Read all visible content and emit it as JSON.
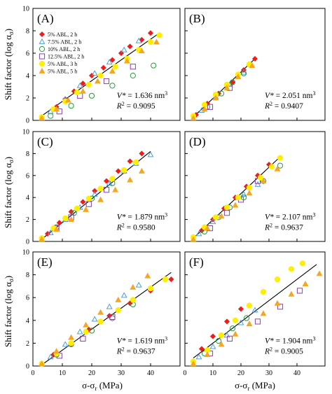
{
  "figure": {
    "ylabel": "Shift factor (log α",
    "ylabel_sub": "σ",
    "ylabel_close": ")",
    "xlabel": "σ-σ",
    "xlabel_sub": "r",
    "xlabel_unit": " (MPa)"
  },
  "legend": [
    {
      "label": "5% ABL, 2 h",
      "marker": "diamond",
      "color": "#ee1c1c"
    },
    {
      "label": "7.5% ABL, 2 h",
      "marker": "triangle-open",
      "color": "#4f9fd6"
    },
    {
      "label": "10% ABL, 2 h",
      "marker": "circle-open",
      "color": "#1f9e3a"
    },
    {
      "label": "12.5% ABL, 2 h",
      "marker": "square-open",
      "color": "#8b3fb0"
    },
    {
      "label": "5% ABL, 3 h",
      "marker": "circle",
      "color": "#ffee00"
    },
    {
      "label": "5% ABL, 5 h",
      "marker": "triangle",
      "color": "#f5a623"
    }
  ],
  "chart_data": [
    {
      "type": "scatter",
      "panel": "(A)",
      "xlim": [
        0,
        50
      ],
      "ylim": [
        0,
        10
      ],
      "xticks": [],
      "yticks": [
        0,
        2,
        4,
        6,
        8,
        10
      ],
      "v_star": "1.636",
      "v_unit": "nm",
      "r2": "0.9095",
      "fit": {
        "x": [
          3,
          43
        ],
        "y": [
          0.4,
          7.8
        ]
      },
      "series": [
        {
          "name": "5% ABL, 2 h",
          "x": [
            8,
            11,
            14,
            17,
            20,
            24,
            27,
            30,
            33,
            37,
            40
          ],
          "y": [
            1.2,
            1.9,
            2.6,
            3.3,
            4.0,
            4.7,
            5.4,
            6.0,
            6.6,
            7.2,
            7.8
          ]
        },
        {
          "name": "7.5% ABL, 2 h",
          "x": [
            6,
            11,
            16,
            21,
            26,
            31,
            36
          ],
          "y": [
            0.8,
            1.9,
            3.1,
            4.2,
            5.2,
            6.3,
            7.1
          ]
        },
        {
          "name": "10% ABL, 2 h",
          "x": [
            6,
            13,
            20,
            27,
            34,
            41
          ],
          "y": [
            0.4,
            1.3,
            2.2,
            3.1,
            4.0,
            4.9
          ]
        },
        {
          "name": "12.5% ABL, 2 h",
          "x": [
            9,
            16,
            25,
            34
          ],
          "y": [
            0.8,
            2.2,
            3.5,
            4.8
          ]
        },
        {
          "name": "5% ABL, 3 h",
          "x": [
            3,
            7,
            11,
            15,
            19,
            23,
            28,
            32,
            36,
            40,
            43
          ],
          "y": [
            0.3,
            1.0,
            1.7,
            2.5,
            3.2,
            4.0,
            4.8,
            5.5,
            6.3,
            7.0,
            7.6
          ]
        },
        {
          "name": "5% ABL, 5 h",
          "x": [
            3,
            8,
            12,
            17,
            22,
            27,
            32,
            37,
            42
          ],
          "y": [
            0.2,
            1.0,
            1.8,
            2.6,
            3.5,
            4.4,
            5.3,
            6.2,
            7.0
          ]
        }
      ]
    },
    {
      "type": "scatter",
      "panel": "(B)",
      "xlim": [
        0,
        50
      ],
      "ylim": [
        0,
        10
      ],
      "xticks": [],
      "yticks": [],
      "v_star": "2.051",
      "v_unit": "nm",
      "r2": "0.9407",
      "fit": {
        "x": [
          3,
          25
        ],
        "y": [
          0.3,
          5.5
        ]
      },
      "series": [
        {
          "name": "5% ABL, 2 h",
          "x": [
            4,
            8,
            12,
            17,
            21,
            25
          ],
          "y": [
            0.5,
            1.5,
            2.4,
            3.4,
            4.5,
            5.5
          ]
        },
        {
          "name": "7.5% ABL, 2 h",
          "x": [
            6,
            11,
            16,
            21
          ],
          "y": [
            0.9,
            2.1,
            3.2,
            4.3
          ]
        },
        {
          "name": "10% ABL, 2 h",
          "x": [
            8,
            13,
            17,
            21
          ],
          "y": [
            1.2,
            2.4,
            3.4,
            4.2
          ]
        },
        {
          "name": "12.5% ABL, 2 h",
          "x": [
            9,
            16
          ],
          "y": [
            1.2,
            2.9
          ]
        },
        {
          "name": "5% ABL, 3 h",
          "x": [
            3,
            7,
            11,
            15,
            19,
            23
          ],
          "y": [
            0.4,
            1.4,
            2.3,
            3.2,
            4.1,
            5.0
          ]
        },
        {
          "name": "5% ABL, 5 h",
          "x": [
            3,
            7,
            11,
            15,
            19,
            24
          ],
          "y": [
            0.2,
            1.0,
            2.0,
            2.9,
            3.9,
            4.9
          ]
        }
      ]
    },
    {
      "type": "scatter",
      "panel": "(C)",
      "xlim": [
        0,
        50
      ],
      "ylim": [
        0,
        10
      ],
      "xticks": [],
      "yticks": [
        0,
        2,
        4,
        6,
        8,
        10
      ],
      "v_star": "1.879",
      "v_unit": "nm",
      "r2": "0.9580",
      "fit": {
        "x": [
          3,
          40
        ],
        "y": [
          0.2,
          8.2
        ]
      },
      "series": [
        {
          "name": "5% ABL, 2 h",
          "x": [
            5,
            9,
            13,
            17,
            21,
            25,
            29,
            33,
            37
          ],
          "y": [
            0.7,
            1.7,
            2.7,
            3.6,
            4.6,
            5.5,
            6.4,
            7.3,
            8.0
          ]
        },
        {
          "name": "7.5% ABL, 2 h",
          "x": [
            6,
            11,
            16,
            21,
            26,
            31,
            35,
            40
          ],
          "y": [
            0.8,
            2.0,
            3.1,
            4.3,
            5.3,
            6.4,
            7.1,
            7.9
          ]
        },
        {
          "name": "10% ABL, 2 h",
          "x": [
            8,
            14,
            20,
            27
          ],
          "y": [
            1.3,
            2.6,
            3.9,
            5.3
          ]
        },
        {
          "name": "12.5% ABL, 2 h",
          "x": [
            8,
            13,
            19,
            25
          ],
          "y": [
            1.2,
            2.2,
            3.4,
            4.7
          ]
        },
        {
          "name": "5% ABL, 3 h",
          "x": [
            3,
            7,
            11,
            15,
            19,
            23,
            27,
            31,
            35
          ],
          "y": [
            0.3,
            1.2,
            2.1,
            3.0,
            3.9,
            4.8,
            5.7,
            6.5,
            7.2
          ]
        },
        {
          "name": "5% ABL, 5 h",
          "x": [
            3,
            8,
            13,
            18,
            23,
            28,
            33,
            37
          ],
          "y": [
            0.2,
            1.1,
            2.0,
            2.9,
            3.8,
            4.7,
            5.6,
            6.4
          ]
        }
      ]
    },
    {
      "type": "scatter",
      "panel": "(D)",
      "xlim": [
        0,
        50
      ],
      "ylim": [
        0,
        10
      ],
      "xticks": [],
      "yticks": [],
      "v_star": "2.107",
      "v_unit": "nm",
      "r2": "0.9637",
      "fit": {
        "x": [
          3,
          34
        ],
        "y": [
          0.3,
          7.7
        ]
      },
      "series": [
        {
          "name": "5% ABL, 2 h",
          "x": [
            6,
            10,
            14,
            18,
            22,
            26,
            30
          ],
          "y": [
            1.0,
            2.0,
            3.0,
            4.0,
            5.0,
            6.0,
            7.0
          ]
        },
        {
          "name": "7.5% ABL, 2 h",
          "x": [
            5,
            10,
            15,
            21,
            26
          ],
          "y": [
            0.7,
            1.8,
            3.0,
            4.3,
            5.2
          ]
        },
        {
          "name": "10% ABL, 2 h",
          "x": [
            7,
            12,
            16,
            21,
            28,
            34
          ],
          "y": [
            0.9,
            2.2,
            3.1,
            4.0,
            5.5,
            6.9
          ]
        },
        {
          "name": "12.5% ABL, 2 h",
          "x": [
            9,
            15,
            20,
            26
          ],
          "y": [
            1.2,
            2.6,
            3.8,
            5.5
          ]
        },
        {
          "name": "5% ABL, 3 h",
          "x": [
            3,
            7,
            11,
            15,
            19,
            23,
            27,
            31,
            34
          ],
          "y": [
            0.4,
            1.3,
            2.2,
            3.1,
            4.0,
            4.9,
            5.8,
            6.8,
            7.6
          ]
        },
        {
          "name": "5% ABL, 5 h",
          "x": [
            3,
            8,
            13,
            18,
            23,
            28,
            33
          ],
          "y": [
            0.2,
            1.2,
            2.3,
            3.3,
            4.4,
            5.5,
            6.6
          ]
        }
      ]
    },
    {
      "type": "scatter",
      "panel": "(E)",
      "xlim": [
        0,
        50
      ],
      "ylim": [
        0,
        10
      ],
      "xticks": [
        0,
        10,
        20,
        30,
        40
      ],
      "yticks": [
        0,
        2,
        4,
        6,
        8,
        10
      ],
      "v_star": "1.619",
      "v_unit": "nm",
      "r2": "0.9637",
      "fit": {
        "x": [
          3,
          47
        ],
        "y": [
          0.1,
          8.2
        ]
      },
      "series": [
        {
          "name": "5% ABL, 2 h",
          "x": [
            7,
            13,
            19,
            26,
            33,
            40,
            47
          ],
          "y": [
            1.0,
            1.9,
            3.2,
            4.4,
            5.5,
            6.6,
            7.6
          ]
        },
        {
          "name": "7.5% ABL, 2 h",
          "x": [
            6,
            11,
            16,
            21,
            26,
            31,
            36
          ],
          "y": [
            0.8,
            1.9,
            3.0,
            4.1,
            5.2,
            6.2,
            7.1
          ]
        },
        {
          "name": "10% ABL, 2 h",
          "x": [
            8,
            13,
            20,
            27,
            34
          ],
          "y": [
            1.0,
            1.9,
            3.1,
            4.2,
            5.4
          ]
        },
        {
          "name": "12.5% ABL, 2 h",
          "x": [
            9,
            17,
            27
          ],
          "y": [
            0.9,
            2.4,
            4.3
          ]
        },
        {
          "name": "5% ABL, 3 h",
          "x": [
            3,
            8,
            13,
            18,
            23,
            29,
            34,
            40,
            45
          ],
          "y": [
            0.2,
            1.1,
            2.0,
            3.0,
            3.9,
            4.9,
            5.8,
            6.8,
            7.6
          ]
        },
        {
          "name": "5% ABL, 5 h",
          "x": [
            3,
            8,
            13,
            18,
            23,
            29,
            34,
            39
          ],
          "y": [
            0.2,
            1.3,
            2.5,
            3.6,
            4.7,
            5.8,
            6.9,
            7.9
          ]
        }
      ]
    },
    {
      "type": "scatter",
      "panel": "(F)",
      "xlim": [
        0,
        50
      ],
      "ylim": [
        0,
        10
      ],
      "xticks": [
        0,
        10,
        20,
        30,
        40
      ],
      "yticks": [],
      "v_star": "1.904",
      "v_unit": "nm",
      "r2": "0.9005",
      "fit": {
        "x": [
          3,
          47
        ],
        "y": [
          0.7,
          8.9
        ]
      },
      "series": [
        {
          "name": "5% ABL, 2 h",
          "x": [
            6,
            10,
            15,
            20
          ],
          "y": [
            1.5,
            2.6,
            3.9,
            5.0
          ]
        },
        {
          "name": "7.5% ABL, 2 h",
          "x": [
            5,
            10,
            15,
            20,
            25
          ],
          "y": [
            0.8,
            1.7,
            2.7,
            3.8,
            4.9
          ]
        },
        {
          "name": "10% ABL, 2 h",
          "x": [
            7,
            12,
            17,
            22
          ],
          "y": [
            1.1,
            2.2,
            3.3,
            4.2
          ]
        },
        {
          "name": "12.5% ABL, 2 h",
          "x": [
            9,
            16,
            26,
            34,
            41
          ],
          "y": [
            1.1,
            2.4,
            3.9,
            5.2,
            6.6
          ]
        },
        {
          "name": "5% ABL, 3 h",
          "x": [
            3,
            8,
            13,
            18,
            23,
            28,
            33,
            38,
            42
          ],
          "y": [
            0.4,
            1.4,
            2.7,
            4.0,
            5.3,
            6.5,
            7.6,
            8.5,
            9.0
          ]
        },
        {
          "name": "5% ABL, 5 h",
          "x": [
            3,
            8,
            13,
            18,
            23,
            28,
            33,
            38,
            43,
            48
          ],
          "y": [
            0.2,
            1.0,
            1.9,
            2.8,
            3.7,
            4.6,
            5.5,
            6.3,
            7.2,
            8.1
          ]
        }
      ]
    }
  ]
}
